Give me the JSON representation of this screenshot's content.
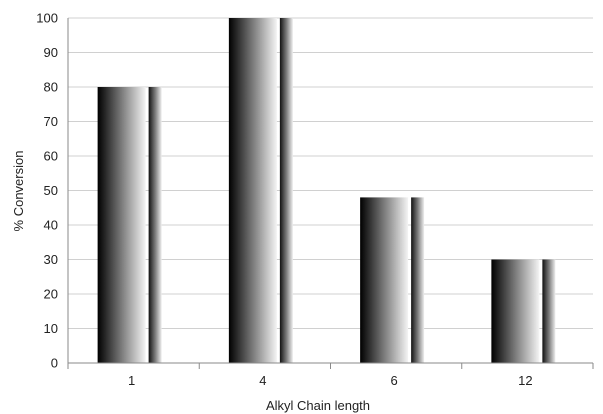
{
  "chart_data": {
    "type": "bar",
    "categories": [
      "1",
      "4",
      "6",
      "12"
    ],
    "values": [
      80,
      100,
      48,
      30
    ],
    "xlabel": "Alkyl Chain length",
    "ylabel": "% Conversion",
    "ylim": [
      0,
      100
    ],
    "yticks": [
      "0",
      "10",
      "20",
      "30",
      "40",
      "50",
      "60",
      "70",
      "80",
      "90",
      "100"
    ],
    "grid": true,
    "legend": "none"
  }
}
